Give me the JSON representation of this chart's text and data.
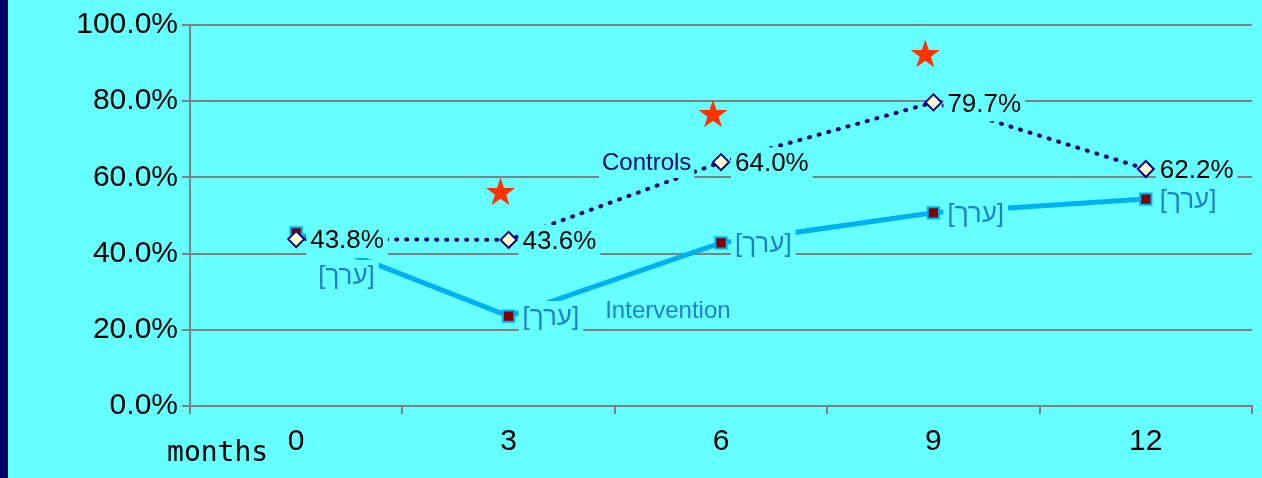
{
  "chart_data": {
    "type": "line",
    "xlabel": "months",
    "categories": [
      "0",
      "3",
      "6",
      "9",
      "12"
    ],
    "series": [
      {
        "name": "Controls",
        "color": "#000080",
        "values": [
          43.8,
          43.6,
          64.0,
          79.7,
          62.2
        ],
        "marker": "diamond",
        "line_style": "dotted",
        "value_labels": [
          "43.8%",
          "43.6%",
          "64.0%",
          "79.7%",
          "62.2%"
        ]
      },
      {
        "name": "Intervention",
        "color": "#00b0f0",
        "values": [
          45.4,
          23.6,
          42.8,
          50.7,
          54.3
        ],
        "marker": "square",
        "line_style": "solid",
        "value_labels": [
          "[ערך]",
          "[ערך]",
          "[ערך]",
          "[ערך]",
          "[ערך]"
        ]
      }
    ],
    "ylim": [
      0,
      100
    ],
    "yticks": [
      {
        "value": 0,
        "label": "0.0%"
      },
      {
        "value": 20,
        "label": "20.0%"
      },
      {
        "value": 40,
        "label": "40.0%"
      },
      {
        "value": 60,
        "label": "60.0%"
      },
      {
        "value": 80,
        "label": "80.0%"
      },
      {
        "value": 100,
        "label": "100.0%"
      }
    ],
    "grid": "y",
    "legend": false,
    "annotations": [
      "★",
      "★",
      "★"
    ]
  }
}
